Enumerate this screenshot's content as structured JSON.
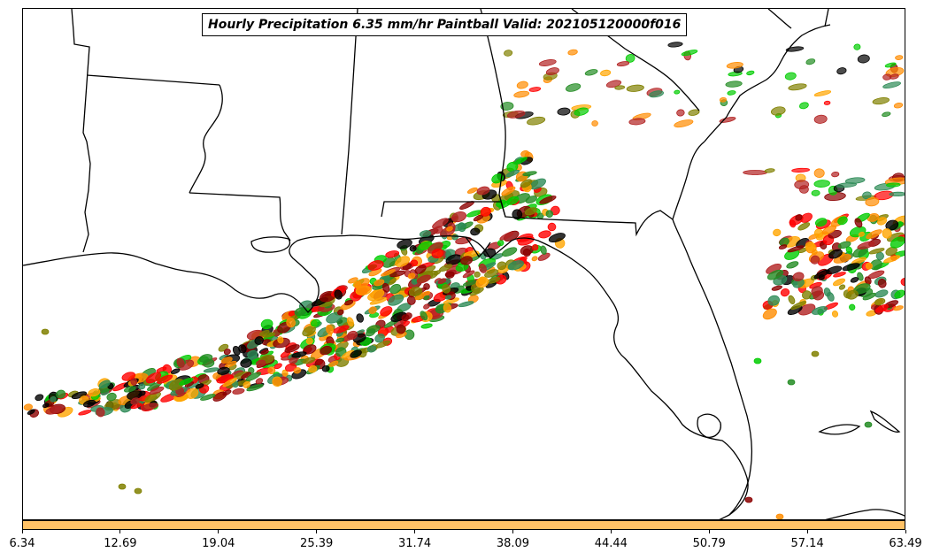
{
  "title": "Hourly Precipitation 6.35 mm/hr Paintball Valid: 202105120000f016",
  "colorbar": {
    "color": "#ffc266",
    "ticks": [
      "6.34",
      "12.69",
      "19.04",
      "25.39",
      "31.74",
      "38.09",
      "44.44",
      "50.79",
      "57.14",
      "63.49"
    ]
  },
  "paintball_colors": [
    "#ff0000",
    "#ff8c00",
    "#8b0000",
    "#228b22",
    "#00cc00",
    "#808000",
    "#b22222",
    "#ffa500",
    "#2e8b57",
    "#000000"
  ]
}
